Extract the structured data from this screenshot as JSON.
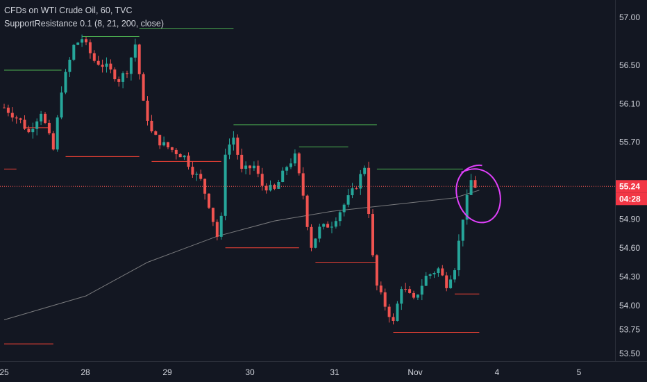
{
  "header": {
    "symbol_line": "CFDs on WTI Crude Oil, 60, TVC",
    "indicator_line": "SupportResistance 0.1 (8, 21, 200, close)"
  },
  "price_badge": {
    "price": "55.24",
    "countdown": "04:28",
    "color": "#f23645"
  },
  "colors": {
    "background": "#131722",
    "up": "#26a69a",
    "down": "#ef5350",
    "resistance": "#4caf50",
    "support": "#f44336",
    "ma": "#9e9e9e",
    "annotation": "#e040fb",
    "axis_text": "#d1d4dc"
  },
  "chart_data": {
    "type": "candlestick",
    "title": "CFDs on WTI Crude Oil, 60, TVC",
    "x_ticks": [
      "25",
      "28",
      "29",
      "30",
      "31",
      "Nov",
      "4",
      "5"
    ],
    "y_ticks": [
      53.5,
      53.75,
      54.0,
      54.3,
      54.6,
      54.9,
      55.24,
      55.7,
      56.1,
      56.5,
      57.0
    ],
    "ylim": [
      53.42,
      57.18
    ],
    "xlim": [
      0,
      155
    ],
    "grid": false,
    "ohlc_keyframes": [
      {
        "i": 0,
        "p": 56.06
      },
      {
        "i": 4,
        "p": 55.92
      },
      {
        "i": 6,
        "p": 55.8
      },
      {
        "i": 9,
        "p": 56.02
      },
      {
        "i": 12,
        "p": 55.62
      },
      {
        "i": 14,
        "p": 56.25
      },
      {
        "i": 17,
        "p": 56.7
      },
      {
        "i": 19,
        "p": 56.78
      },
      {
        "i": 22,
        "p": 56.55
      },
      {
        "i": 25,
        "p": 56.48
      },
      {
        "i": 28,
        "p": 56.35
      },
      {
        "i": 30,
        "p": 56.45
      },
      {
        "i": 32,
        "p": 56.72
      },
      {
        "i": 34,
        "p": 56.1
      },
      {
        "i": 36,
        "p": 55.8
      },
      {
        "i": 38,
        "p": 55.7
      },
      {
        "i": 41,
        "p": 55.62
      },
      {
        "i": 44,
        "p": 55.55
      },
      {
        "i": 46,
        "p": 55.4
      },
      {
        "i": 48,
        "p": 55.3
      },
      {
        "i": 50,
        "p": 55.05
      },
      {
        "i": 52,
        "p": 54.72
      },
      {
        "i": 53,
        "p": 54.9
      },
      {
        "i": 54,
        "p": 55.6
      },
      {
        "i": 56,
        "p": 55.75
      },
      {
        "i": 58,
        "p": 55.4
      },
      {
        "i": 61,
        "p": 55.45
      },
      {
        "i": 63,
        "p": 55.25
      },
      {
        "i": 66,
        "p": 55.2
      },
      {
        "i": 69,
        "p": 55.45
      },
      {
        "i": 71,
        "p": 55.55
      },
      {
        "i": 73,
        "p": 55.15
      },
      {
        "i": 74,
        "p": 54.85
      },
      {
        "i": 75,
        "p": 54.62
      },
      {
        "i": 77,
        "p": 54.8
      },
      {
        "i": 80,
        "p": 54.85
      },
      {
        "i": 83,
        "p": 55.05
      },
      {
        "i": 86,
        "p": 55.25
      },
      {
        "i": 88,
        "p": 55.45
      },
      {
        "i": 89,
        "p": 54.98
      },
      {
        "i": 90,
        "p": 54.5
      },
      {
        "i": 91,
        "p": 54.2
      },
      {
        "i": 93,
        "p": 54.0
      },
      {
        "i": 95,
        "p": 53.82
      },
      {
        "i": 97,
        "p": 54.2
      },
      {
        "i": 100,
        "p": 54.05
      },
      {
        "i": 103,
        "p": 54.3
      },
      {
        "i": 106,
        "p": 54.38
      },
      {
        "i": 108,
        "p": 54.22
      },
      {
        "i": 110,
        "p": 54.4
      },
      {
        "i": 112,
        "p": 54.92
      },
      {
        "i": 114,
        "p": 55.3
      },
      {
        "i": 115,
        "p": 55.24
      }
    ],
    "resistance_levels": [
      {
        "x0": 0,
        "x1": 14,
        "y": 56.45
      },
      {
        "x0": 19,
        "x1": 33,
        "y": 56.8
      },
      {
        "x0": 33,
        "x1": 56,
        "y": 56.88
      },
      {
        "x0": 56,
        "x1": 91,
        "y": 55.88
      },
      {
        "x0": 72,
        "x1": 84,
        "y": 55.65
      },
      {
        "x0": 91,
        "x1": 112,
        "y": 55.42
      }
    ],
    "support_levels": [
      {
        "x0": 0,
        "x1": 3,
        "y": 55.42
      },
      {
        "x0": 5,
        "x1": 11,
        "y": 55.85
      },
      {
        "x0": 15,
        "x1": 33,
        "y": 55.55
      },
      {
        "x0": 36,
        "x1": 53,
        "y": 55.5
      },
      {
        "x0": 54,
        "x1": 72,
        "y": 54.6
      },
      {
        "x0": 76,
        "x1": 91,
        "y": 54.45
      },
      {
        "x0": 95,
        "x1": 116,
        "y": 53.72
      },
      {
        "x0": 110,
        "x1": 116,
        "y": 54.12
      },
      {
        "x0": 0,
        "x1": 12,
        "y": 53.6
      }
    ],
    "moving_average": [
      {
        "x": 0,
        "y": 53.85
      },
      {
        "x": 20,
        "y": 54.1
      },
      {
        "x": 35,
        "y": 54.45
      },
      {
        "x": 52,
        "y": 54.72
      },
      {
        "x": 66,
        "y": 54.88
      },
      {
        "x": 80,
        "y": 54.98
      },
      {
        "x": 95,
        "y": 55.05
      },
      {
        "x": 110,
        "y": 55.12
      },
      {
        "x": 116,
        "y": 55.2
      }
    ],
    "last_price": 55.24
  }
}
